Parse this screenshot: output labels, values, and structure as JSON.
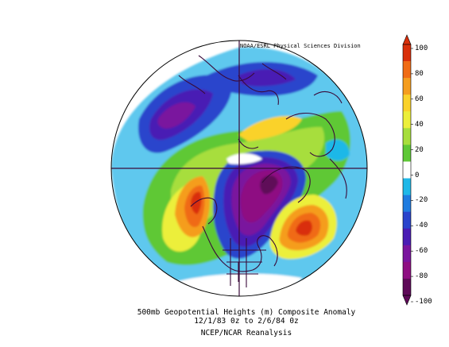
{
  "credit": "NOAA/ESRL Physical Sciences Division",
  "caption": {
    "line1": "500mb Geopotential Heights (m)   Composite Anomaly",
    "line2": "12/1/83 0z  to 2/6/84 0z",
    "line3": "NCEP/NCAR Reanalysis"
  },
  "colorbar": {
    "labels": [
      "100",
      "80",
      "60",
      "40",
      "20",
      "0",
      "-20",
      "-40",
      "-60",
      "-80",
      "-100"
    ],
    "colors": [
      "#d92f0a",
      "#f06b14",
      "#f59d1e",
      "#fad22a",
      "#ecef3a",
      "#a7de3c",
      "#5ec836",
      "#ffffff",
      "#1fb8e8",
      "#1f7ce0",
      "#2a44cc",
      "#4a1cb4",
      "#7a149e",
      "#8e0e82",
      "#5e0a58"
    ],
    "vmin": -100,
    "vmax": 100
  },
  "map": {
    "projection": "north-polar-stereographic",
    "field": "500mb geopotential height anomaly"
  }
}
